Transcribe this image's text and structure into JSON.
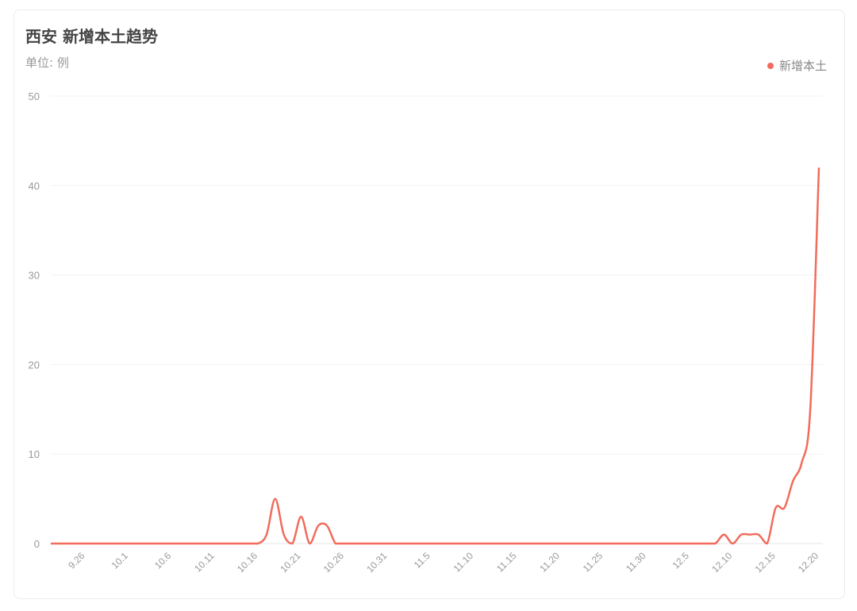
{
  "header": {
    "title": "西安 新增本土趋势",
    "unit": "单位: 例"
  },
  "legend": {
    "label": "新增本土"
  },
  "colors": {
    "series": "#f26b5b",
    "grid": "#f3f3f3"
  },
  "chart_data": {
    "type": "line",
    "title": "西安 新增本土趋势",
    "ylabel": "单位: 例",
    "ylim": [
      0,
      50
    ],
    "yticks": [
      "0",
      "10",
      "20",
      "30",
      "40",
      "50"
    ],
    "xticks": [
      "9.26",
      "10.1",
      "10.6",
      "10.11",
      "10.16",
      "10.21",
      "10.26",
      "10.31",
      "11.5",
      "11.10",
      "11.15",
      "11.20",
      "11.25",
      "11.30",
      "12.5",
      "12.10",
      "12.15",
      "12.20"
    ],
    "grid": true,
    "legend_position": "top-right",
    "x": [
      "9.22",
      "9.23",
      "9.24",
      "9.25",
      "9.26",
      "9.27",
      "9.28",
      "9.29",
      "9.30",
      "10.1",
      "10.2",
      "10.3",
      "10.4",
      "10.5",
      "10.6",
      "10.7",
      "10.8",
      "10.9",
      "10.10",
      "10.11",
      "10.12",
      "10.13",
      "10.14",
      "10.15",
      "10.16",
      "10.17",
      "10.18",
      "10.19",
      "10.20",
      "10.21",
      "10.22",
      "10.23",
      "10.24",
      "10.25",
      "10.26",
      "10.27",
      "10.28",
      "10.29",
      "10.30",
      "10.31",
      "11.1",
      "11.2",
      "11.3",
      "11.4",
      "11.5",
      "11.6",
      "11.7",
      "11.8",
      "11.9",
      "11.10",
      "11.11",
      "11.12",
      "11.13",
      "11.14",
      "11.15",
      "11.16",
      "11.17",
      "11.18",
      "11.19",
      "11.20",
      "11.21",
      "11.22",
      "11.23",
      "11.24",
      "11.25",
      "11.26",
      "11.27",
      "11.28",
      "11.29",
      "11.30",
      "12.1",
      "12.2",
      "12.3",
      "12.4",
      "12.5",
      "12.6",
      "12.7",
      "12.8",
      "12.9",
      "12.10",
      "12.11",
      "12.12",
      "12.13",
      "12.14",
      "12.15",
      "12.16",
      "12.17",
      "12.18",
      "12.19",
      "12.20"
    ],
    "series": [
      {
        "name": "新增本土",
        "values": [
          0,
          0,
          0,
          0,
          0,
          0,
          0,
          0,
          0,
          0,
          0,
          0,
          0,
          0,
          0,
          0,
          0,
          0,
          0,
          0,
          0,
          0,
          0,
          0,
          0,
          1,
          5,
          1,
          0,
          3,
          0,
          2,
          2,
          0,
          0,
          0,
          0,
          0,
          0,
          0,
          0,
          0,
          0,
          0,
          0,
          0,
          0,
          0,
          0,
          0,
          0,
          0,
          0,
          0,
          0,
          0,
          0,
          0,
          0,
          0,
          0,
          0,
          0,
          0,
          0,
          0,
          0,
          0,
          0,
          0,
          0,
          0,
          0,
          0,
          0,
          0,
          0,
          0,
          1,
          0,
          1,
          1,
          1,
          0,
          4,
          4,
          7,
          9,
          15,
          42
        ]
      }
    ]
  }
}
